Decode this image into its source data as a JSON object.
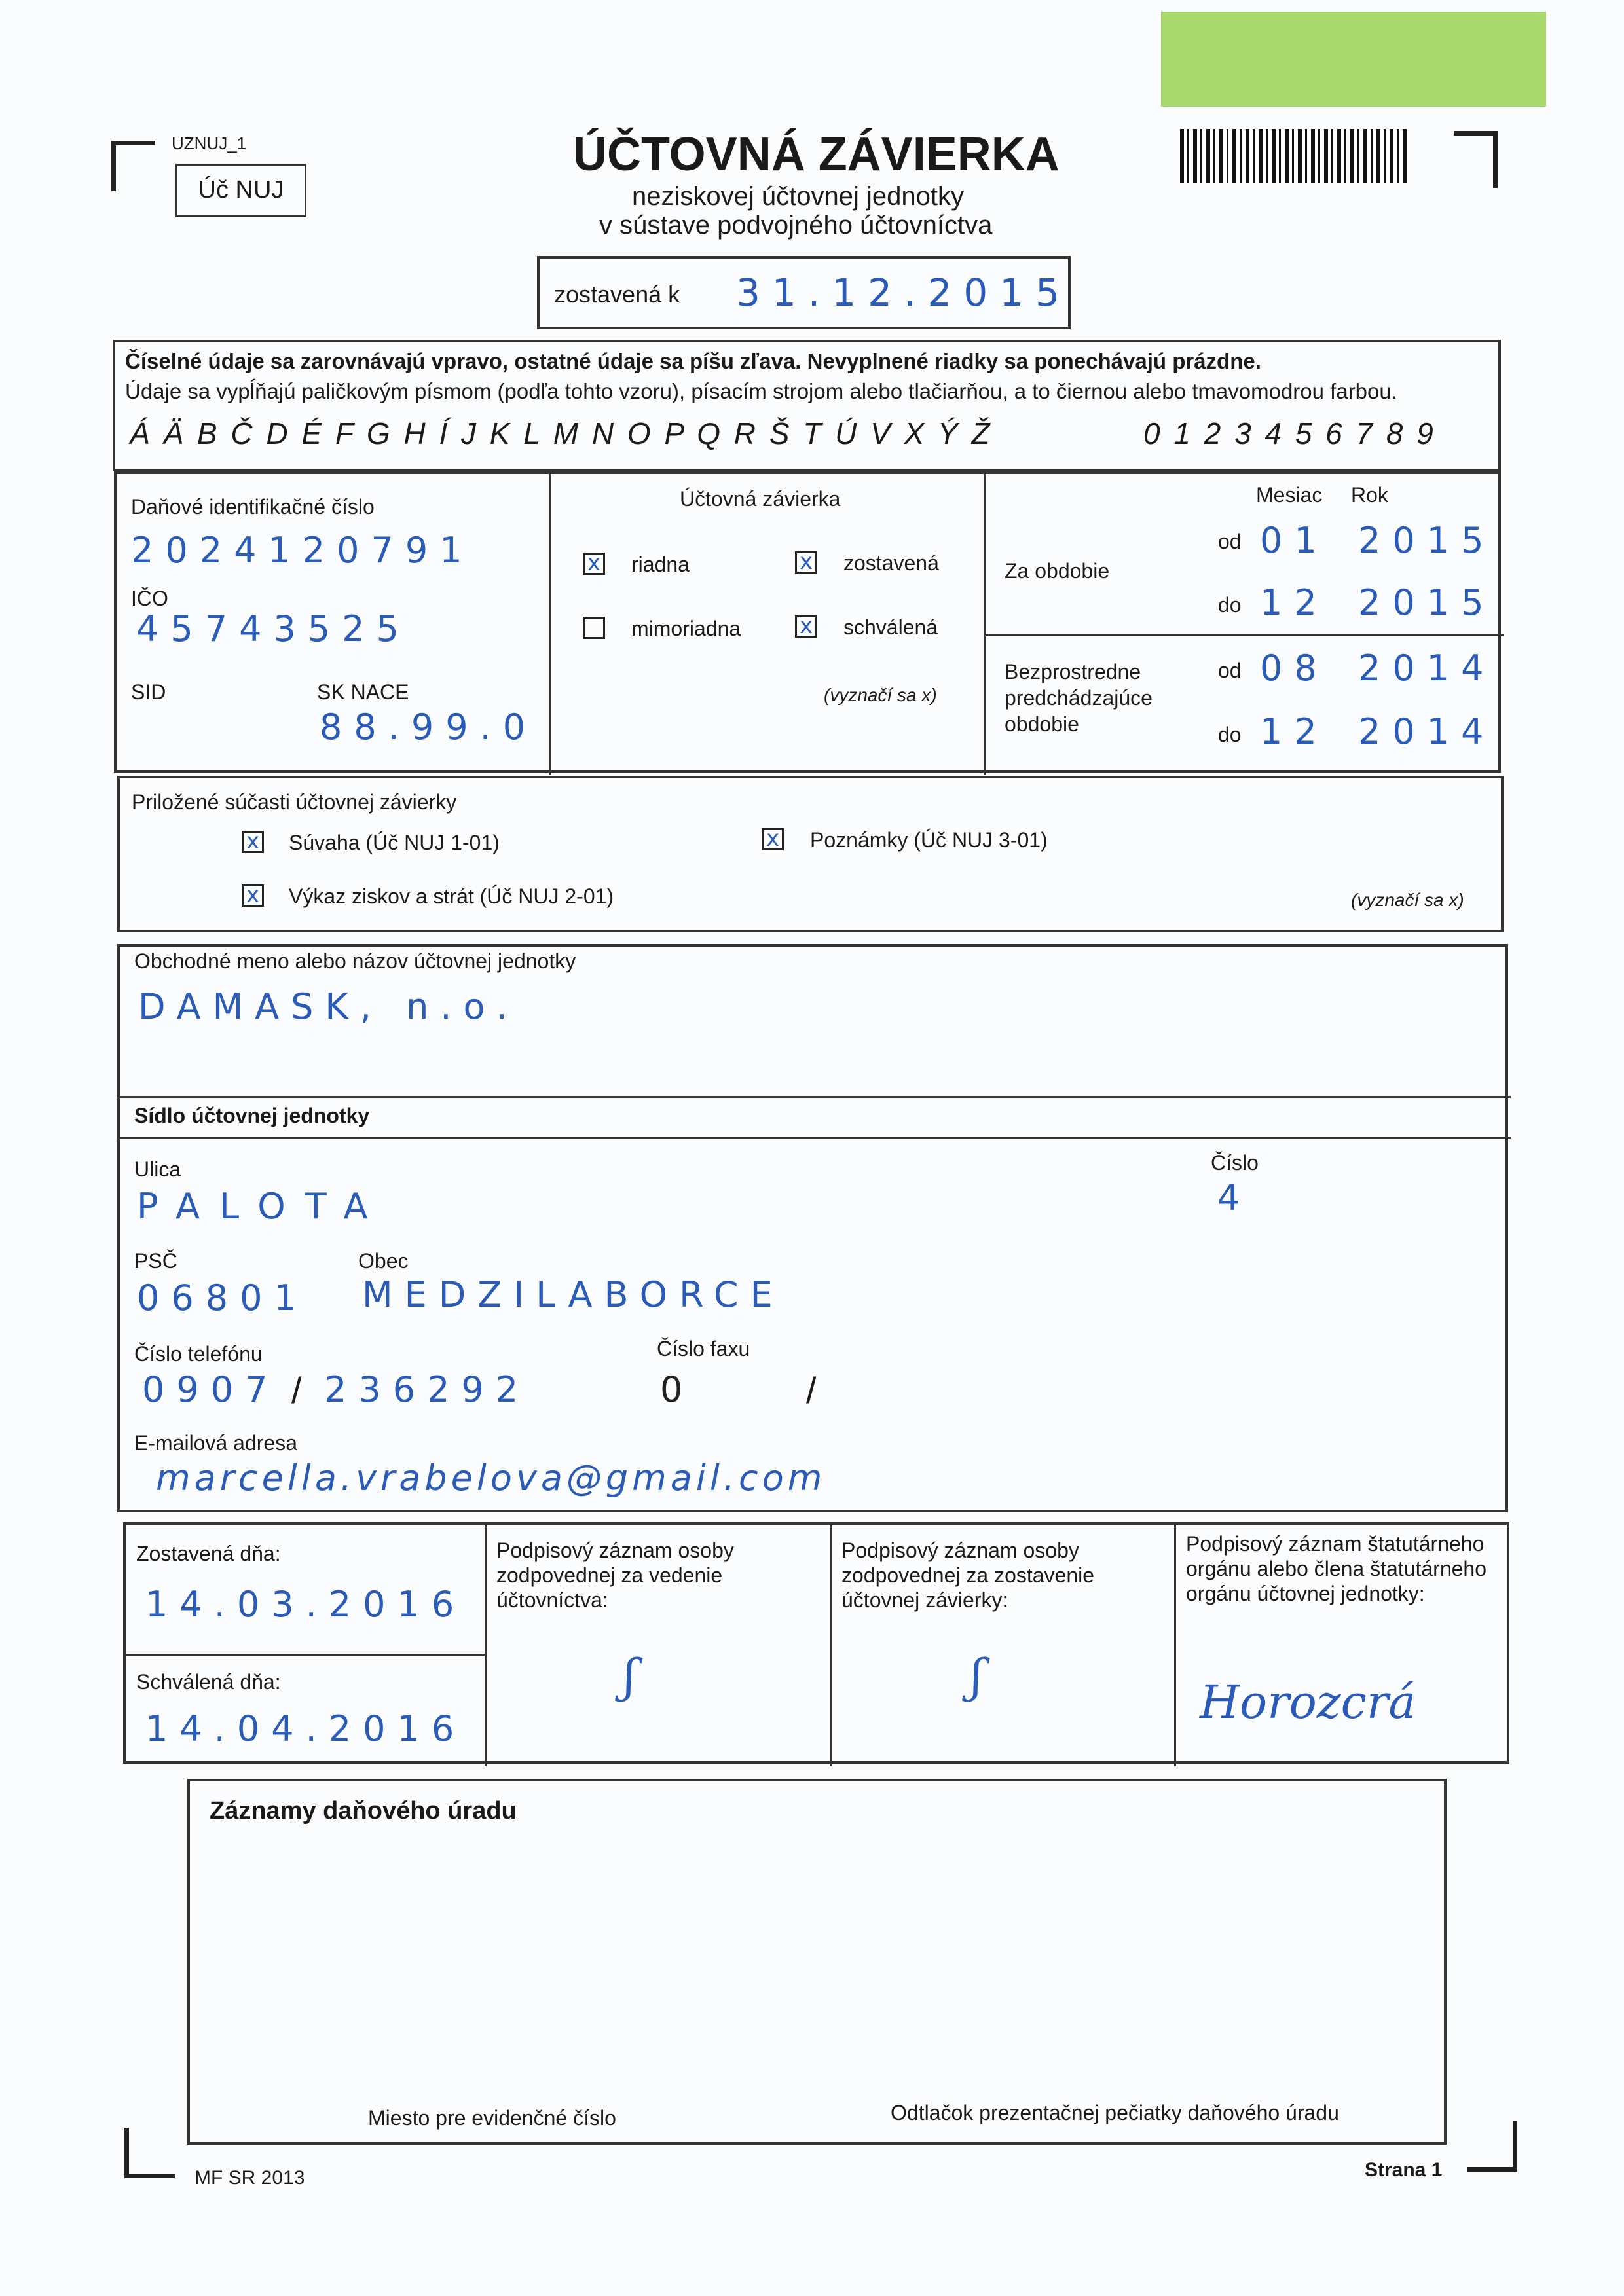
{
  "header": {
    "form_code": "UZNUJ_1",
    "form_badge": "Úč NUJ",
    "title": "ÚČTOVNÁ ZÁVIERKA",
    "subtitle1": "neziskovej účtovnej jednotky",
    "subtitle2": "v sústave podvojného účtovníctva",
    "prepared_as_of_label": "zostavená k",
    "prepared_as_of_value": "31.12.2015",
    "green_tag_color": "#a9d96c"
  },
  "instructions": {
    "line1": "Číselné údaje sa zarovnávajú vpravo, ostatné údaje sa píšu zľava. Nevyplnené riadky sa ponechávajú prázdne.",
    "line2": "Údaje sa vypĺňajú paličkovým písmom (podľa tohto vzoru), písacím strojom alebo tlačiarňou, a to čiernou alebo tmavomodrou farbou.",
    "alphabet": "Á Ä B Č D É F G H Í J K L M N O P Q R Š T Ú V X Ý Ž",
    "digits": "0 1 2 3 4 5 6 7 8 9"
  },
  "ids": {
    "dic_label": "Daňové identifikačné číslo",
    "dic_value": "2024120791",
    "ico_label": "IČO",
    "ico_value": "45743525",
    "sid_label": "SID",
    "sknace_label": "SK NACE",
    "sknace_value": "88.99.0"
  },
  "statement": {
    "title": "Účtovná závierka",
    "options": [
      {
        "label": "riadna",
        "checked": true
      },
      {
        "label": "zostavená",
        "checked": true
      },
      {
        "label": "mimoriadna",
        "checked": false
      },
      {
        "label": "schválená",
        "checked": true
      }
    ],
    "note": "(vyznačí sa x)",
    "mark": "x"
  },
  "period": {
    "month_label": "Mesiac",
    "year_label": "Rok",
    "current_label": "Za obdobie",
    "previous_label": "Bezprostredne predchádzajúce obdobie",
    "from_label": "od",
    "to_label": "do",
    "current_from_month": "01",
    "current_from_year": "2015",
    "current_to_month": "12",
    "current_to_year": "2015",
    "prev_from_month": "08",
    "prev_from_year": "2014",
    "prev_to_month": "12",
    "prev_to_year": "2014"
  },
  "attachments": {
    "title": "Priložené súčasti účtovnej závierky",
    "items": [
      {
        "label": "Súvaha (Úč NUJ 1-01)",
        "checked": true
      },
      {
        "label": "Výkaz ziskov a strát (Úč NUJ 2-01)",
        "checked": true
      },
      {
        "label": "Poznámky (Úč NUJ 3-01)",
        "checked": true
      }
    ],
    "note": "(vyznačí sa x)"
  },
  "entity": {
    "name_label": "Obchodné meno alebo názov účtovnej jednotky",
    "name_value": "DAMASK, n.o.",
    "seat_title": "Sídlo účtovnej jednotky",
    "street_label": "Ulica",
    "street_value": "PALOTA",
    "number_label": "Číslo",
    "number_value": "4",
    "zip_label": "PSČ",
    "zip_value": "06801",
    "city_label": "Obec",
    "city_value": "MEDZILABORCE",
    "phone_label": "Číslo telefónu",
    "phone_prefix": "0907",
    "phone_number": "236292",
    "fax_label": "Číslo faxu",
    "fax_prefix": "0",
    "email_label": "E-mailová adresa",
    "email_value": "marcella.vrabelova@gmail.com"
  },
  "signatures": {
    "prepared_label": "Zostavená dňa:",
    "prepared_value": "14.03.2016",
    "approved_label": "Schválená dňa:",
    "approved_value": "14.04.2016",
    "col1": "Podpisový záznam osoby zodpovednej za vedenie účtovníctva:",
    "col2": "Podpisový záznam osoby zodpovednej za zostavenie účtovnej závierky:",
    "col3": "Podpisový záznam štatutárneho orgánu alebo člena štatutárneho orgánu účtovnej jednotky:",
    "sig3": "Horozcrá"
  },
  "tax_office": {
    "title": "Záznamy daňového úradu",
    "left": "Miesto pre evidenčné číslo",
    "right": "Odtlačok prezentačnej pečiatky daňového úradu"
  },
  "footer": {
    "left": "MF SR 2013",
    "right": "Strana 1"
  }
}
